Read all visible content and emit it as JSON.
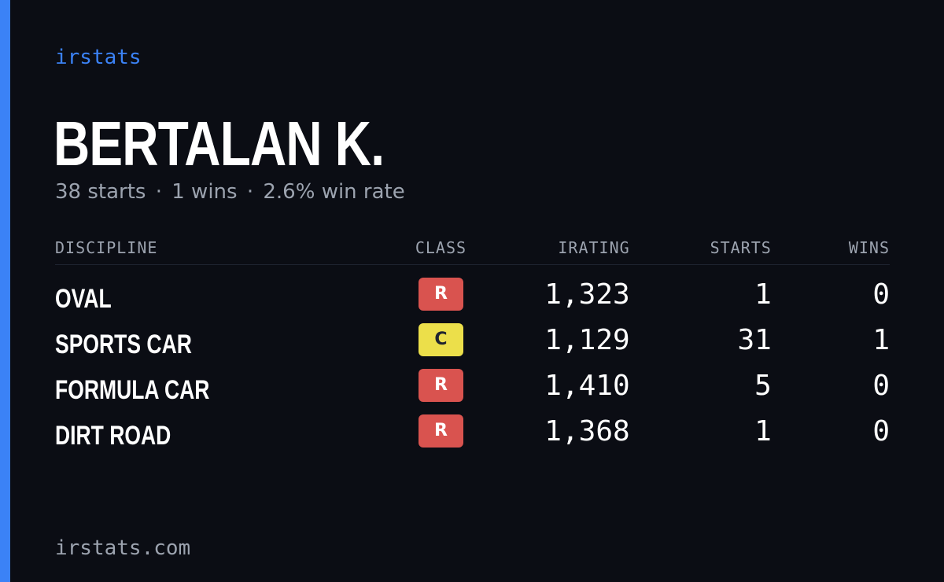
{
  "brand": "irstats",
  "driver_name": "BERTALAN K.",
  "summary": {
    "starts_text": "38 starts",
    "wins_text": "1 wins",
    "winrate_text": "2.6% win rate",
    "separator": "·"
  },
  "table": {
    "headers": {
      "discipline": "DISCIPLINE",
      "class": "CLASS",
      "irating": "IRATING",
      "starts": "STARTS",
      "wins": "WINS"
    },
    "rows": [
      {
        "discipline": "OVAL",
        "class": "R",
        "class_color": "#d9534f",
        "class_text_color": "#ffffff",
        "irating": "1,323",
        "starts": "1",
        "wins": "0"
      },
      {
        "discipline": "SPORTS CAR",
        "class": "C",
        "class_color": "#ecdf4a",
        "class_text_color": "#1f2430",
        "irating": "1,129",
        "starts": "31",
        "wins": "1"
      },
      {
        "discipline": "FORMULA CAR",
        "class": "R",
        "class_color": "#d9534f",
        "class_text_color": "#ffffff",
        "irating": "1,410",
        "starts": "5",
        "wins": "0"
      },
      {
        "discipline": "DIRT ROAD",
        "class": "R",
        "class_color": "#d9534f",
        "class_text_color": "#ffffff",
        "irating": "1,368",
        "starts": "1",
        "wins": "0"
      }
    ]
  },
  "footer": "irstats.com",
  "colors": {
    "background": "#0b0d14",
    "accent": "#3b82f6",
    "muted_text": "#9ca3af"
  }
}
